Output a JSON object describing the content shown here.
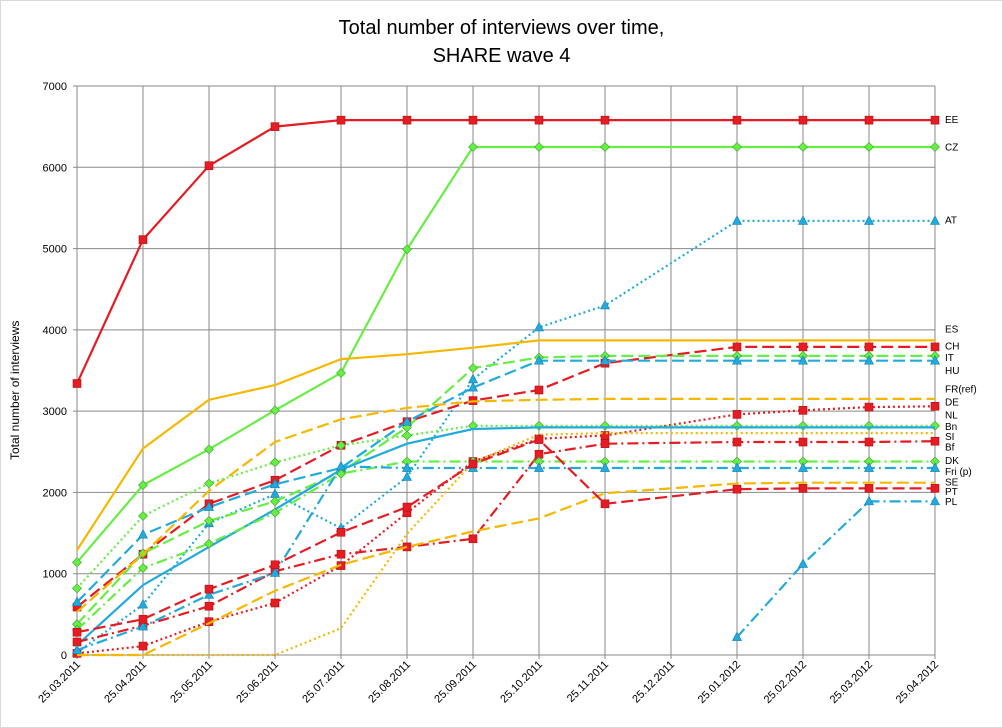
{
  "chart_data": {
    "type": "line",
    "title": [
      "Total number of interviews over time,",
      "SHARE wave 4"
    ],
    "ylabel": "Total number of interviews",
    "xlabel": "",
    "ylim": [
      0,
      7000
    ],
    "yticks": [
      0,
      1000,
      2000,
      3000,
      4000,
      5000,
      6000,
      7000
    ],
    "x_categories": [
      "25.03.2011",
      "25.04.2011",
      "25.05.2011",
      "25.06.2011",
      "25.07.2011",
      "25.08.2011",
      "25.09.2011",
      "25.10.2011",
      "25.11.2011",
      "25.12.2011",
      "25.01.2012",
      "25.02.2012",
      "25.03.2012",
      "25.04.2012"
    ],
    "grid": true,
    "series": [
      {
        "name": "EE",
        "color": "#e51c23",
        "dash": "solid",
        "marker": "square",
        "x": [
          0,
          1,
          2,
          3,
          4,
          5,
          6,
          7,
          8,
          10,
          11,
          12,
          13
        ],
        "y": [
          3340,
          5110,
          6020,
          6500,
          6580,
          6580,
          6580,
          6580,
          6580,
          6580,
          6580,
          6580,
          6580
        ],
        "label_y": 6590
      },
      {
        "name": "CZ",
        "color": "#66ee44",
        "dash": "solid",
        "marker": "diamond",
        "x": [
          0,
          1,
          2,
          3,
          4,
          5,
          6,
          7,
          8,
          10,
          11,
          12,
          13
        ],
        "y": [
          1140,
          2090,
          2530,
          3010,
          3470,
          4990,
          6250,
          6250,
          6250,
          6250,
          6250,
          6250,
          6250
        ],
        "label_y": 6250
      },
      {
        "name": "AT",
        "color": "#22aadd",
        "dash": "dot",
        "marker": "triangle",
        "x": [
          0,
          1,
          2,
          3,
          4,
          5,
          6,
          7,
          8,
          10,
          11,
          12,
          13
        ],
        "y": [
          30,
          620,
          1620,
          1980,
          1560,
          2190,
          3390,
          4030,
          4300,
          5340,
          5340,
          5340,
          5340
        ],
        "label_y": 5350
      },
      {
        "name": "ES",
        "color": "#f5b800",
        "dash": "solid",
        "marker": "none",
        "x": [
          0,
          1,
          2,
          3,
          4,
          5,
          6,
          7,
          8,
          10,
          11,
          12,
          13
        ],
        "y": [
          1290,
          2540,
          3140,
          3320,
          3640,
          3700,
          3780,
          3870,
          3870,
          3870,
          3870,
          3870,
          3870
        ],
        "label_y": 4010
      },
      {
        "name": "CH",
        "color": "#e51c23",
        "dash": "longdash",
        "marker": "square",
        "x": [
          0,
          1,
          2,
          3,
          4,
          5,
          6,
          7,
          8,
          10,
          11,
          12,
          13
        ],
        "y": [
          590,
          1240,
          1860,
          2150,
          2580,
          2870,
          3130,
          3260,
          3590,
          3790,
          3790,
          3790,
          3790
        ],
        "label_y": 3800
      },
      {
        "name": "IT",
        "color": "#66ee44",
        "dash": "longdash",
        "marker": "diamond",
        "x": [
          0,
          1,
          2,
          3,
          4,
          5,
          6,
          7,
          8,
          10,
          11,
          12,
          13
        ],
        "y": [
          380,
          1250,
          1650,
          1890,
          2250,
          2800,
          3530,
          3660,
          3680,
          3680,
          3680,
          3680,
          3680
        ],
        "label_y": 3660
      },
      {
        "name": "HU",
        "color": "#22aadd",
        "dash": "longdash",
        "marker": "triangle",
        "x": [
          0,
          1,
          2,
          3,
          4,
          5,
          6,
          7,
          8,
          10,
          11,
          12,
          13
        ],
        "y": [
          650,
          1480,
          1820,
          2100,
          2300,
          2870,
          3290,
          3620,
          3620,
          3620,
          3620,
          3620,
          3620
        ],
        "label_y": 3500
      },
      {
        "name": "FR(ref)",
        "color": "#f5b800",
        "dash": "longdash",
        "marker": "none",
        "x": [
          0,
          1,
          2,
          3,
          4,
          5,
          6,
          7,
          8,
          10,
          11,
          12,
          13
        ],
        "y": [
          530,
          1240,
          2020,
          2620,
          2900,
          3040,
          3120,
          3140,
          3150,
          3150,
          3150,
          3150,
          3150
        ],
        "label_y": 3270
      },
      {
        "name": "DE",
        "color": "#e51c23",
        "dash": "dot",
        "marker": "square",
        "x": [
          0,
          1,
          2,
          3,
          4,
          5,
          6,
          7,
          8,
          10,
          11,
          12,
          13
        ],
        "y": [
          20,
          110,
          410,
          640,
          1100,
          1750,
          2380,
          2660,
          2700,
          2960,
          3010,
          3050,
          3060
        ],
        "label_y": 3110
      },
      {
        "name": "NL",
        "color": "#66ee44",
        "dash": "dot",
        "marker": "diamond",
        "x": [
          0,
          1,
          2,
          3,
          4,
          5,
          6,
          7,
          8,
          10,
          11,
          12,
          13
        ],
        "y": [
          820,
          1710,
          2110,
          2370,
          2580,
          2700,
          2820,
          2820,
          2820,
          2820,
          2820,
          2820,
          2820
        ],
        "label_y": 2950
      },
      {
        "name": "Bn",
        "color": "#22aadd",
        "dash": "solid",
        "marker": "none",
        "x": [
          0,
          1,
          2,
          3,
          4,
          5,
          6,
          7,
          8,
          10,
          11,
          12,
          13
        ],
        "y": [
          120,
          860,
          1330,
          1790,
          2280,
          2600,
          2780,
          2800,
          2800,
          2800,
          2800,
          2800,
          2800
        ],
        "label_y": 2810
      },
      {
        "name": "SI",
        "color": "#f5b800",
        "dash": "dot",
        "marker": "none",
        "x": [
          0,
          1,
          2,
          3,
          4,
          5,
          6,
          7,
          8,
          10,
          11,
          12,
          13
        ],
        "y": [
          0,
          0,
          0,
          0,
          330,
          1490,
          2370,
          2710,
          2730,
          2730,
          2730,
          2730,
          2730
        ],
        "label_y": 2690
      },
      {
        "name": "Bf",
        "color": "#e51c23",
        "dash": "dashdot",
        "marker": "square",
        "x": [
          0,
          1,
          2,
          3,
          4,
          5,
          6,
          7,
          8,
          10,
          11,
          12,
          13
        ],
        "y": [
          160,
          360,
          600,
          1030,
          1240,
          1330,
          1430,
          2470,
          2600,
          2620,
          2620,
          2620,
          2630
        ],
        "label_y": 2560
      },
      {
        "name": "DK",
        "color": "#66ee44",
        "dash": "dashdot",
        "marker": "diamond",
        "x": [
          0,
          1,
          2,
          3,
          4,
          5,
          6,
          7,
          8,
          10,
          11,
          12,
          13
        ],
        "y": [
          310,
          1070,
          1370,
          1750,
          2230,
          2380,
          2380,
          2380,
          2380,
          2380,
          2380,
          2380,
          2380
        ],
        "label_y": 2390
      },
      {
        "name": "Fri (p)",
        "color": "#22aadd",
        "dash": "dashdot",
        "marker": "triangle",
        "x": [
          0,
          1,
          2,
          3,
          4,
          5,
          6,
          7,
          8,
          10,
          11,
          12,
          13
        ],
        "y": [
          60,
          350,
          740,
          1010,
          2320,
          2300,
          2300,
          2300,
          2300,
          2300,
          2300,
          2300,
          2300
        ],
        "label_y": 2260
      },
      {
        "name": "SE",
        "color": "#f5b800",
        "dash": "longdash",
        "marker": "none",
        "x": [
          0,
          1,
          2,
          3,
          4,
          5,
          6,
          7,
          8,
          10,
          11,
          12,
          13
        ],
        "y": [
          0,
          0,
          390,
          790,
          1110,
          1330,
          1520,
          1680,
          1990,
          2110,
          2120,
          2120,
          2120
        ],
        "label_y": 2130
      },
      {
        "name": "PT",
        "color": "#e51c23",
        "dash": "longdash",
        "marker": "square",
        "x": [
          0,
          1,
          2,
          3,
          4,
          5,
          6,
          7,
          8,
          10,
          11,
          12,
          13
        ],
        "y": [
          280,
          440,
          810,
          1110,
          1510,
          1820,
          2350,
          2650,
          1860,
          2040,
          2050,
          2050,
          2050
        ],
        "label_y": 2010
      },
      {
        "name": "PL",
        "color": "#22aadd",
        "dash": "dashdot",
        "marker": "triangle",
        "x": [
          10,
          11,
          12,
          13
        ],
        "y": [
          220,
          1120,
          1890,
          1890
        ],
        "label_y": 1890
      }
    ]
  }
}
